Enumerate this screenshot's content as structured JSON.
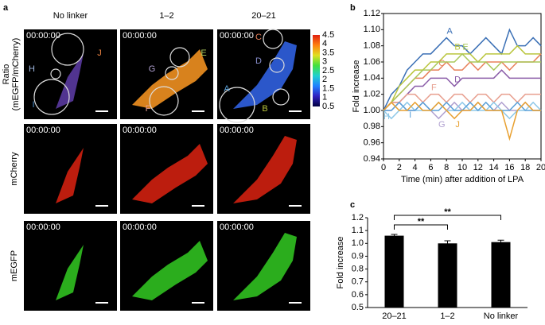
{
  "panel_a": {
    "label": "a",
    "columns": [
      "No linker",
      "1–2",
      "20–21"
    ],
    "rows": [
      "Ratio",
      "(mEGFP/mCherry)",
      "mCherry",
      "mEGFP"
    ],
    "timestamps": [
      [
        "00:00:00",
        "00:00:00",
        "00:00:00"
      ],
      [
        "00:00:00",
        "00:00:00",
        "00:00:00"
      ],
      [
        "00:00:00",
        "00:00:00",
        "00:00:00"
      ]
    ],
    "roi_labels": [
      [
        "H",
        "I",
        "J"
      ],
      [
        "G",
        "E",
        "F"
      ],
      [
        "C",
        "D",
        "A",
        "B"
      ]
    ],
    "colorbar": {
      "lim": [
        0.5,
        4.5
      ],
      "ticks": [
        4.5,
        4,
        3.5,
        3,
        2.5,
        2,
        1.5,
        1,
        0.5
      ]
    }
  },
  "chart_data": [
    {
      "type": "line",
      "panel": "b",
      "xlabel": "Time (min) after addition of LPA",
      "ylabel": "Fold increase",
      "x": [
        0,
        1,
        2,
        3,
        4,
        5,
        6,
        7,
        8,
        9,
        10,
        11,
        12,
        13,
        14,
        15,
        16,
        17,
        18,
        19,
        20
      ],
      "xlim": [
        0,
        20
      ],
      "xticks": [
        0,
        2,
        4,
        6,
        8,
        10,
        12,
        14,
        16,
        18,
        20
      ],
      "ylim": [
        0.94,
        1.12
      ],
      "yticks": [
        0.94,
        0.96,
        0.98,
        {
          "value": 1,
          "label": "1.00"
        },
        1.02,
        1.04,
        1.06,
        1.08,
        {
          "value": 1.1,
          "label": "1.10"
        },
        1.12
      ],
      "series": [
        {
          "name": "A",
          "color": "#3a6fb5",
          "values": [
            1.0,
            1.02,
            1.03,
            1.05,
            1.06,
            1.07,
            1.07,
            1.08,
            1.09,
            1.08,
            1.08,
            1.07,
            1.08,
            1.09,
            1.08,
            1.07,
            1.1,
            1.08,
            1.08,
            1.09,
            1.08
          ]
        },
        {
          "name": "B",
          "color": "#b9c53c",
          "values": [
            1.0,
            1.01,
            1.03,
            1.04,
            1.05,
            1.05,
            1.06,
            1.06,
            1.07,
            1.07,
            1.07,
            1.07,
            1.06,
            1.07,
            1.07,
            1.07,
            1.07,
            1.08,
            1.07,
            1.07,
            1.07
          ]
        },
        {
          "name": "C",
          "color": "#e8805a",
          "values": [
            1.0,
            1.01,
            1.02,
            1.03,
            1.04,
            1.04,
            1.05,
            1.05,
            1.06,
            1.05,
            1.05,
            1.06,
            1.05,
            1.06,
            1.06,
            1.06,
            1.05,
            1.06,
            1.06,
            1.06,
            1.07
          ]
        },
        {
          "name": "D",
          "color": "#8a5ca8",
          "values": [
            1.0,
            1.01,
            1.01,
            1.02,
            1.03,
            1.03,
            1.04,
            1.04,
            1.04,
            1.03,
            1.04,
            1.04,
            1.04,
            1.04,
            1.04,
            1.05,
            1.04,
            1.04,
            1.04,
            1.04,
            1.04
          ]
        },
        {
          "name": "E",
          "color": "#a9c85b",
          "values": [
            1.0,
            1.01,
            1.02,
            1.03,
            1.04,
            1.05,
            1.05,
            1.06,
            1.06,
            1.06,
            1.07,
            1.06,
            1.06,
            1.06,
            1.05,
            1.06,
            1.06,
            1.06,
            1.06,
            1.06,
            1.06
          ]
        },
        {
          "name": "F",
          "color": "#e8a090",
          "values": [
            1.0,
            1.01,
            1.01,
            1.02,
            1.02,
            1.01,
            1.02,
            1.02,
            1.01,
            1.02,
            1.02,
            1.01,
            1.02,
            1.02,
            1.01,
            1.02,
            1.02,
            1.01,
            1.02,
            1.02,
            1.02
          ]
        },
        {
          "name": "G",
          "color": "#b0a0d0",
          "values": [
            1.0,
            1.0,
            1.01,
            1.0,
            1.0,
            1.01,
            1.0,
            0.99,
            1.0,
            1.01,
            1.0,
            1.0,
            1.01,
            1.0,
            1.0,
            1.01,
            1.0,
            1.0,
            1.01,
            1.0,
            1.0
          ]
        },
        {
          "name": "H",
          "color": "#8ec8e8",
          "values": [
            1.0,
            0.99,
            1.0,
            1.01,
            1.0,
            1.0,
            1.0,
            1.01,
            1.0,
            1.0,
            1.01,
            1.0,
            1.0,
            1.0,
            1.01,
            1.0,
            0.99,
            1.0,
            1.0,
            1.01,
            1.0
          ]
        },
        {
          "name": "I",
          "color": "#5aa0d8",
          "values": [
            1.0,
            1.0,
            1.01,
            1.0,
            1.0,
            1.01,
            1.0,
            1.0,
            1.01,
            1.0,
            1.0,
            1.01,
            1.0,
            1.01,
            1.0,
            1.0,
            1.0,
            1.01,
            1.0,
            1.0,
            1.0
          ]
        },
        {
          "name": "J",
          "color": "#e8a030",
          "values": [
            1.0,
            1.01,
            1.0,
            1.0,
            1.01,
            1.0,
            1.0,
            1.01,
            1.0,
            0.99,
            1.0,
            1.0,
            1.01,
            1.0,
            1.0,
            1.0,
            0.965,
            1.0,
            1.01,
            1.0,
            1.0
          ]
        }
      ]
    },
    {
      "type": "bar",
      "panel": "c",
      "ylabel": "Fold increase",
      "categories": [
        "20–21",
        "1–2",
        "No linker"
      ],
      "values": [
        1.06,
        1.0,
        1.01
      ],
      "errors": [
        0.01,
        0.02,
        0.015
      ],
      "color": "#000000",
      "ylim": [
        0.5,
        1.2
      ],
      "yticks": [
        0.5,
        0.6,
        0.7,
        0.8,
        0.9,
        {
          "value": 1,
          "label": "1.0"
        },
        1.1,
        1.2
      ],
      "annotations": [
        "**",
        "**"
      ]
    }
  ]
}
